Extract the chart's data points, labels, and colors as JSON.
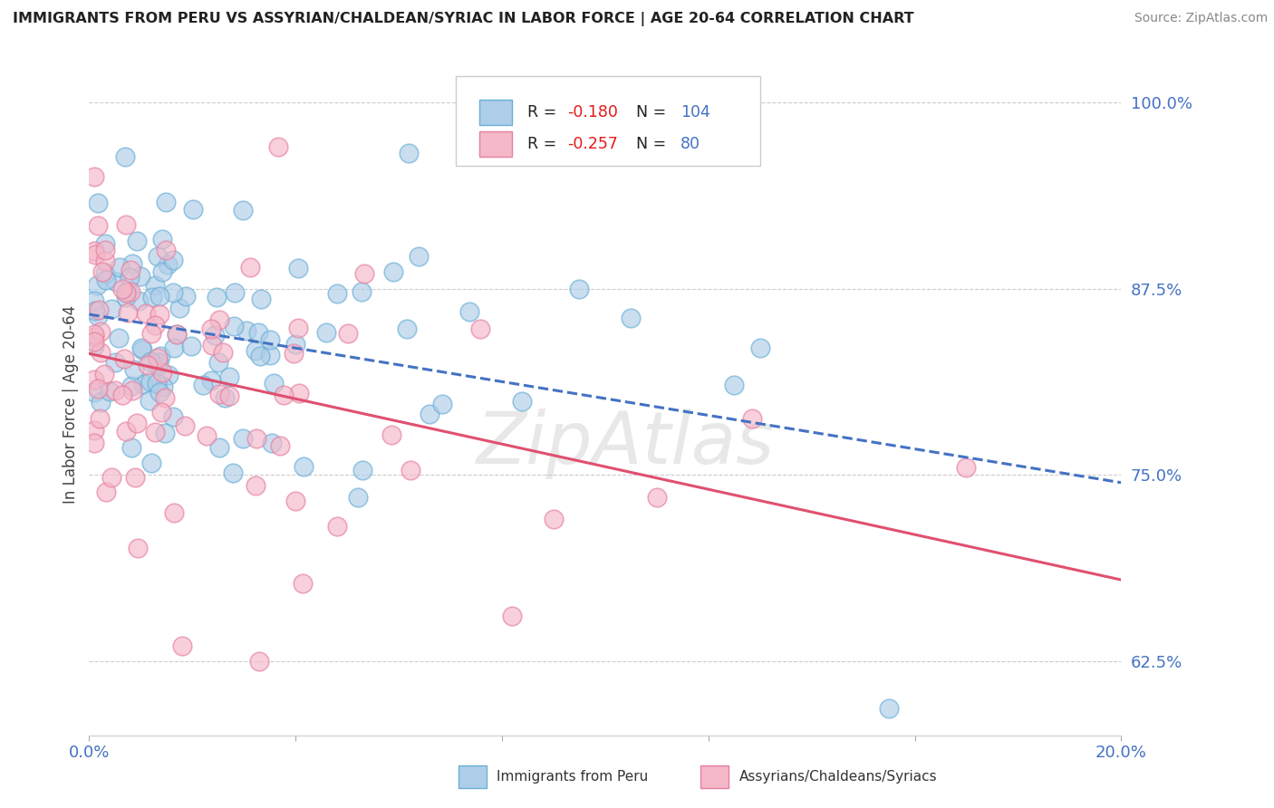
{
  "title": "IMMIGRANTS FROM PERU VS ASSYRIAN/CHALDEAN/SYRIAC IN LABOR FORCE | AGE 20-64 CORRELATION CHART",
  "source": "Source: ZipAtlas.com",
  "ylabel": "In Labor Force | Age 20-64",
  "xlim": [
    0.0,
    0.2
  ],
  "ylim": [
    0.575,
    1.02
  ],
  "yticks": [
    0.625,
    0.75,
    0.875,
    1.0
  ],
  "ytick_labels": [
    "62.5%",
    "75.0%",
    "87.5%",
    "100.0%"
  ],
  "xticks": [
    0.0,
    0.04,
    0.08,
    0.12,
    0.16,
    0.2
  ],
  "series1_name": "Immigrants from Peru",
  "series1_R": -0.18,
  "series1_N": 104,
  "series1_fill": "#aecde8",
  "series1_edge": "#6aafd6",
  "series1_line": "#4472c4",
  "series2_name": "Assyrians/Chaldeans/Syriacs",
  "series2_R": -0.257,
  "series2_N": 80,
  "series2_fill": "#f4b8c8",
  "series2_edge": "#e87fa0",
  "series2_line": "#e05070",
  "background_color": "#ffffff",
  "grid_color": "#cccccc",
  "tick_color": "#4472c4",
  "title_color": "#222222",
  "source_color": "#888888",
  "legend_R_color": "#e31a1c",
  "legend_N_color": "#4472c4",
  "watermark": "ZipAtlas"
}
